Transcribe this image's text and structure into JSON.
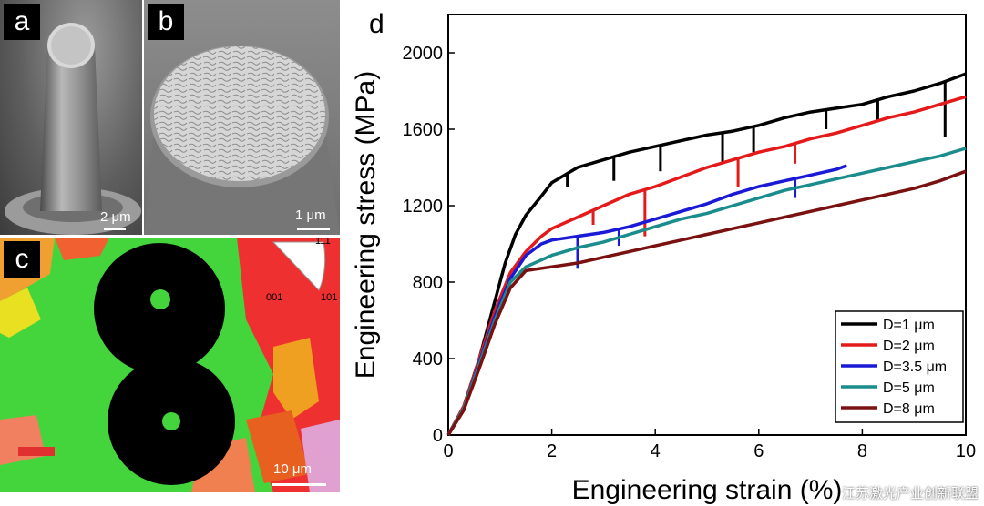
{
  "panels": {
    "a": {
      "label": "a",
      "scalebar": "2 μm"
    },
    "b": {
      "label": "b",
      "scalebar": "1 μm"
    },
    "c": {
      "label": "c",
      "scalebar": "10 μm",
      "ipf_labels": [
        "111",
        "001",
        "101"
      ]
    },
    "d": {
      "label": "d"
    }
  },
  "watermark": "江苏激光产业创新联盟",
  "chart_data": {
    "type": "line",
    "xlabel": "Engineering strain (%)",
    "ylabel": "Engineering stress (MPa)",
    "xlim": [
      0,
      10
    ],
    "ylim": [
      0,
      2200
    ],
    "xticks": [
      0,
      2,
      4,
      6,
      8,
      10
    ],
    "yticks": [
      0,
      400,
      800,
      1200,
      1600,
      2000
    ],
    "legend_position": "bottom-right",
    "series": [
      {
        "name": "D=1 μm",
        "color": "#000000",
        "points": [
          [
            0,
            0
          ],
          [
            0.3,
            150
          ],
          [
            0.6,
            400
          ],
          [
            0.9,
            700
          ],
          [
            1.1,
            900
          ],
          [
            1.3,
            1050
          ],
          [
            1.5,
            1150
          ],
          [
            1.8,
            1250
          ],
          [
            2,
            1320
          ],
          [
            2.5,
            1400
          ],
          [
            3,
            1440
          ],
          [
            3.5,
            1480
          ],
          [
            4,
            1510
          ],
          [
            4.5,
            1540
          ],
          [
            5,
            1570
          ],
          [
            5.5,
            1590
          ],
          [
            6,
            1620
          ],
          [
            6.5,
            1660
          ],
          [
            7,
            1690
          ],
          [
            7.5,
            1710
          ],
          [
            8,
            1730
          ],
          [
            8.5,
            1770
          ],
          [
            9,
            1800
          ],
          [
            9.5,
            1840
          ],
          [
            10,
            1890
          ]
        ],
        "drops": [
          [
            2.3,
            1300
          ],
          [
            3.2,
            1330
          ],
          [
            4.1,
            1380
          ],
          [
            5.3,
            1420
          ],
          [
            5.9,
            1480
          ],
          [
            7.3,
            1600
          ],
          [
            8.3,
            1640
          ],
          [
            9.6,
            1560
          ]
        ]
      },
      {
        "name": "D=2 μm",
        "color": "#e41a1a",
        "points": [
          [
            0,
            0
          ],
          [
            0.3,
            150
          ],
          [
            0.6,
            400
          ],
          [
            0.9,
            650
          ],
          [
            1.2,
            850
          ],
          [
            1.5,
            960
          ],
          [
            1.8,
            1040
          ],
          [
            2,
            1080
          ],
          [
            2.5,
            1140
          ],
          [
            3,
            1200
          ],
          [
            3.5,
            1260
          ],
          [
            4,
            1300
          ],
          [
            4.5,
            1350
          ],
          [
            5,
            1400
          ],
          [
            5.5,
            1440
          ],
          [
            6,
            1480
          ],
          [
            6.5,
            1510
          ],
          [
            7,
            1550
          ],
          [
            7.5,
            1580
          ],
          [
            8,
            1620
          ],
          [
            8.5,
            1660
          ],
          [
            9,
            1690
          ],
          [
            9.5,
            1730
          ],
          [
            10,
            1770
          ]
        ],
        "drops": [
          [
            2.8,
            1100
          ],
          [
            3.8,
            1040
          ],
          [
            5.6,
            1300
          ],
          [
            6.7,
            1420
          ]
        ]
      },
      {
        "name": "D=3.5 μm",
        "color": "#1a1ad6",
        "points": [
          [
            0,
            0
          ],
          [
            0.3,
            140
          ],
          [
            0.6,
            380
          ],
          [
            0.9,
            620
          ],
          [
            1.2,
            820
          ],
          [
            1.5,
            940
          ],
          [
            1.8,
            1000
          ],
          [
            2,
            1020
          ],
          [
            2.5,
            1040
          ],
          [
            3,
            1060
          ],
          [
            3.5,
            1090
          ],
          [
            4,
            1130
          ],
          [
            4.5,
            1170
          ],
          [
            5,
            1210
          ],
          [
            5.5,
            1260
          ],
          [
            6,
            1300
          ],
          [
            6.5,
            1330
          ],
          [
            7,
            1360
          ],
          [
            7.5,
            1390
          ],
          [
            7.7,
            1410
          ]
        ],
        "drops": [
          [
            2.5,
            870
          ],
          [
            3.3,
            990
          ],
          [
            6.7,
            1240
          ]
        ]
      },
      {
        "name": "D=5 μm",
        "color": "#1a8c8c",
        "points": [
          [
            0,
            0
          ],
          [
            0.3,
            140
          ],
          [
            0.6,
            370
          ],
          [
            0.9,
            600
          ],
          [
            1.2,
            800
          ],
          [
            1.5,
            880
          ],
          [
            2,
            940
          ],
          [
            2.5,
            980
          ],
          [
            3,
            1010
          ],
          [
            3.5,
            1050
          ],
          [
            4,
            1090
          ],
          [
            4.5,
            1130
          ],
          [
            5,
            1160
          ],
          [
            5.5,
            1200
          ],
          [
            6,
            1240
          ],
          [
            6.5,
            1280
          ],
          [
            7,
            1310
          ],
          [
            7.5,
            1340
          ],
          [
            8,
            1370
          ],
          [
            8.5,
            1400
          ],
          [
            9,
            1430
          ],
          [
            9.5,
            1460
          ],
          [
            10,
            1500
          ]
        ],
        "drops": []
      },
      {
        "name": "D=8 μm",
        "color": "#7a1010",
        "points": [
          [
            0,
            0
          ],
          [
            0.3,
            130
          ],
          [
            0.6,
            350
          ],
          [
            0.9,
            580
          ],
          [
            1.2,
            770
          ],
          [
            1.5,
            860
          ],
          [
            2,
            880
          ],
          [
            2.5,
            900
          ],
          [
            3,
            930
          ],
          [
            3.5,
            960
          ],
          [
            4,
            990
          ],
          [
            4.5,
            1020
          ],
          [
            5,
            1050
          ],
          [
            5.5,
            1080
          ],
          [
            6,
            1110
          ],
          [
            6.5,
            1140
          ],
          [
            7,
            1170
          ],
          [
            7.5,
            1200
          ],
          [
            8,
            1230
          ],
          [
            8.5,
            1260
          ],
          [
            9,
            1290
          ],
          [
            9.5,
            1330
          ],
          [
            10,
            1380
          ]
        ],
        "drops": []
      }
    ]
  }
}
